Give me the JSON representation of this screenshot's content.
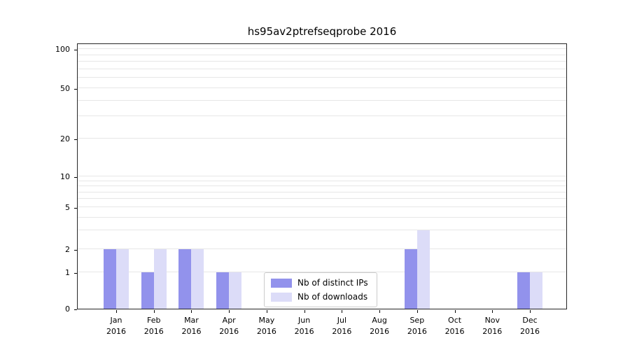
{
  "page": {
    "title": "hs95av2ptrefseqprobe 2016"
  },
  "chart_data": {
    "type": "bar",
    "title": "hs95av2ptrefseqprobe 2016",
    "categories": [
      "Jan",
      "Feb",
      "Mar",
      "Apr",
      "May",
      "Jun",
      "Jul",
      "Aug",
      "Sep",
      "Oct",
      "Nov",
      "Dec"
    ],
    "year": "2016",
    "series": [
      {
        "name": "Nb of distinct IPs",
        "color": "#9292ec",
        "values": [
          2,
          1,
          2,
          1,
          0,
          0,
          0,
          0,
          2,
          0,
          0,
          1
        ]
      },
      {
        "name": "Nb of downloads",
        "color": "#dcdcf8",
        "values": [
          2,
          2,
          2,
          1,
          0,
          0,
          0,
          0,
          3,
          0,
          0,
          1
        ]
      }
    ],
    "yticks": [
      0,
      1,
      2,
      5,
      10,
      20,
      50,
      100
    ],
    "yscale": "log-like",
    "ylim": [
      0,
      110
    ],
    "grid": "horizontal",
    "legend": {
      "position": "lower-center",
      "entries": [
        "Nb of distinct IPs",
        "Nb of downloads"
      ]
    }
  }
}
